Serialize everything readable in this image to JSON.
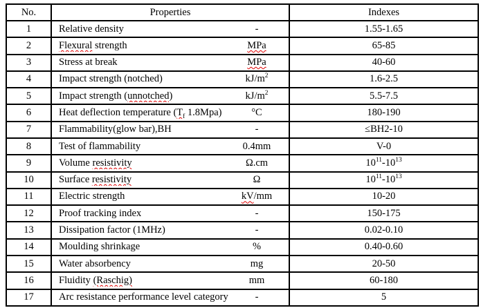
{
  "table": {
    "headers": {
      "no": "No.",
      "properties": "Properties",
      "indexes": "Indexes"
    },
    "rows": [
      {
        "no": "1",
        "property": [
          {
            "text": "Relative density"
          }
        ],
        "unit": [
          {
            "text": "-"
          }
        ],
        "index": [
          {
            "text": "1.55-1.65"
          }
        ]
      },
      {
        "no": "2",
        "property": [
          {
            "text": "Flexural",
            "style": "sq"
          },
          {
            "text": " strength"
          }
        ],
        "unit": [
          {
            "text": "MPa",
            "style": "sq"
          }
        ],
        "index": [
          {
            "text": "65-85"
          }
        ]
      },
      {
        "no": "3",
        "property": [
          {
            "text": "Stress at break"
          }
        ],
        "unit": [
          {
            "text": "MPa",
            "style": "sq"
          }
        ],
        "index": [
          {
            "text": "40-60"
          }
        ]
      },
      {
        "no": "4",
        "property": [
          {
            "text": "Impact strength (notched)"
          }
        ],
        "unit": [
          {
            "text": "kJ/m"
          },
          {
            "text": "2",
            "style": "sup"
          }
        ],
        "index": [
          {
            "text": "1.6-2.5"
          }
        ]
      },
      {
        "no": "5",
        "property": [
          {
            "text": "Impact strength ("
          },
          {
            "text": "unnotched)",
            "style": "sq"
          }
        ],
        "unit": [
          {
            "text": "kJ/m"
          },
          {
            "text": "2",
            "style": "sup"
          }
        ],
        "index": [
          {
            "text": "5.5-7.5"
          }
        ]
      },
      {
        "no": "6",
        "property": [
          {
            "text": "Heat deflection temperature ("
          },
          {
            "text": "T",
            "style": "sq"
          },
          {
            "text": "f",
            "style": "sq sub"
          },
          {
            "text": " 1.8Mpa)"
          }
        ],
        "unit": [
          {
            "text": "°C"
          }
        ],
        "index": [
          {
            "text": "180-190"
          }
        ]
      },
      {
        "no": "7",
        "property": [
          {
            "text": "Flammability(glow bar),BH"
          }
        ],
        "unit": [
          {
            "text": "-"
          }
        ],
        "index": [
          {
            "text": "≤BH2-10"
          }
        ]
      },
      {
        "no": "8",
        "property": [
          {
            "text": "Test of flammability"
          }
        ],
        "unit": [
          {
            "text": "0.4mm"
          }
        ],
        "index": [
          {
            "text": "V-0"
          }
        ]
      },
      {
        "no": "9",
        "property": [
          {
            "text": "Volume "
          },
          {
            "text": "resistivity",
            "style": "sq"
          }
        ],
        "unit": [
          {
            "text": "Ω.cm"
          }
        ],
        "index": [
          {
            "text": "10"
          },
          {
            "text": "11",
            "style": "sup"
          },
          {
            "text": "-10"
          },
          {
            "text": "13",
            "style": "sup"
          }
        ]
      },
      {
        "no": "10",
        "property": [
          {
            "text": "Surface "
          },
          {
            "text": "resistivity",
            "style": "sq"
          }
        ],
        "unit": [
          {
            "text": "Ω"
          }
        ],
        "index": [
          {
            "text": "10"
          },
          {
            "text": "11",
            "style": "sup"
          },
          {
            "text": "-10"
          },
          {
            "text": "13",
            "style": "sup"
          }
        ]
      },
      {
        "no": "11",
        "property": [
          {
            "text": "Electric strength"
          }
        ],
        "unit": [
          {
            "text": "kV",
            "style": "sq"
          },
          {
            "text": "/mm"
          }
        ],
        "index": [
          {
            "text": "10-20"
          }
        ]
      },
      {
        "no": "12",
        "property": [
          {
            "text": "Proof tracking index"
          }
        ],
        "unit": [
          {
            "text": "-"
          }
        ],
        "index": [
          {
            "text": "150-175"
          }
        ]
      },
      {
        "no": "13",
        "property": [
          {
            "text": "Dissipation factor (1MHz)"
          }
        ],
        "unit": [
          {
            "text": "-"
          }
        ],
        "index": [
          {
            "text": "0.02-0.10"
          }
        ]
      },
      {
        "no": "14",
        "property": [
          {
            "text": "Moulding shrinkage"
          }
        ],
        "unit": [
          {
            "text": "%"
          }
        ],
        "index": [
          {
            "text": "0.40-0.60"
          }
        ]
      },
      {
        "no": "15",
        "property": [
          {
            "text": "Water absorbency"
          }
        ],
        "unit": [
          {
            "text": "mg"
          }
        ],
        "index": [
          {
            "text": "20-50"
          }
        ]
      },
      {
        "no": "16",
        "property": [
          {
            "text": "Fluidity "
          },
          {
            "text": "(Raschig)",
            "style": "sq"
          }
        ],
        "unit": [
          {
            "text": "mm"
          }
        ],
        "index": [
          {
            "text": "60-180"
          }
        ]
      },
      {
        "no": "17",
        "property": [
          {
            "text": "Arc resistance performance level category"
          }
        ],
        "unit": [
          {
            "text": "-"
          }
        ],
        "index": [
          {
            "text": "5"
          }
        ]
      }
    ]
  },
  "colors": {
    "background": "#ffffff",
    "border": "#000000",
    "text": "#000000",
    "squiggle": "#e00000"
  }
}
